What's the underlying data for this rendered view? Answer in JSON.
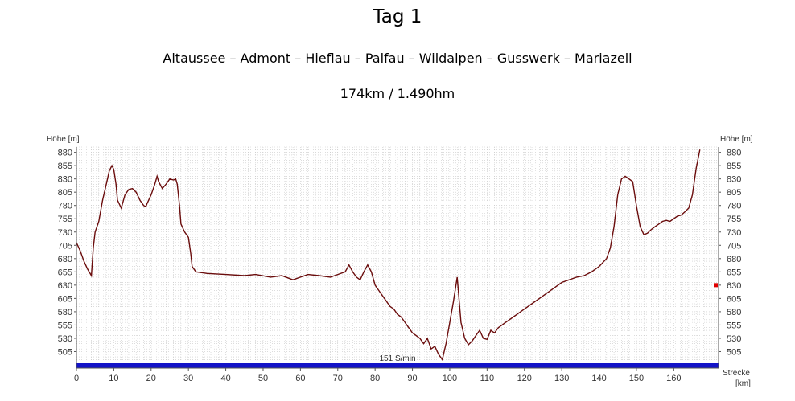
{
  "header": {
    "title": "Tag 1",
    "route": "Altaussee – Admont – Hieflau – Palfau – Wildalpen – Gusswerk  – Mariazell",
    "stats": "174km / 1.490hm"
  },
  "chart_data": {
    "type": "line",
    "ylabel_left": "Höhe [m]",
    "ylabel_right": "Höhe [m]",
    "xlabel_line1": "Strecke",
    "xlabel_line2": "[km]",
    "band_label": "151 S/min",
    "xlim": [
      0,
      172
    ],
    "ylim": [
      480,
      890
    ],
    "x_ticks": [
      0,
      10,
      20,
      30,
      40,
      50,
      60,
      70,
      80,
      90,
      100,
      110,
      120,
      130,
      140,
      150,
      160
    ],
    "y_ticks": [
      505,
      530,
      555,
      580,
      605,
      630,
      655,
      680,
      705,
      730,
      755,
      780,
      805,
      830,
      855,
      880
    ],
    "grid": true,
    "colors": {
      "line": "#6b0d0d",
      "band": "#1414c8",
      "grid": "#c8c8c8",
      "marker": "#e00000"
    },
    "marker_right_y": 630,
    "series": [
      {
        "x": [
          0,
          1,
          2,
          3,
          4,
          4.5,
          5,
          6,
          7,
          8,
          8.8,
          9.5,
          10,
          10.6,
          11,
          12,
          13,
          14,
          15,
          16,
          17,
          18,
          18.6,
          19,
          20,
          21,
          21.6,
          22,
          23,
          24,
          25,
          26,
          26.6,
          27,
          27.6,
          28,
          29,
          30,
          30.6,
          31,
          32,
          35,
          40,
          45,
          48,
          52,
          55,
          58,
          60,
          62,
          65,
          68,
          70,
          72,
          73,
          74,
          75,
          76,
          77,
          78,
          79,
          80,
          81,
          82,
          83,
          84,
          85,
          86,
          87,
          88,
          89,
          90,
          91,
          92,
          93,
          94,
          95,
          96,
          97,
          98,
          99,
          100,
          101,
          102,
          103,
          104,
          105,
          106,
          107,
          108,
          109,
          110,
          111,
          112,
          113,
          114,
          115,
          116,
          117,
          118,
          120,
          122,
          124,
          126,
          128,
          130,
          132,
          134,
          136,
          138,
          140,
          142,
          143,
          144,
          145,
          146,
          147,
          148,
          149,
          150,
          151,
          152,
          153,
          154,
          155,
          156,
          157,
          158,
          159,
          160,
          161,
          162,
          163,
          164,
          165,
          166,
          167
        ],
        "y": [
          710,
          695,
          675,
          660,
          648,
          700,
          730,
          750,
          790,
          820,
          845,
          855,
          848,
          820,
          790,
          775,
          800,
          810,
          812,
          805,
          790,
          780,
          778,
          785,
          800,
          820,
          835,
          825,
          812,
          820,
          830,
          828,
          830,
          820,
          780,
          745,
          730,
          720,
          690,
          665,
          655,
          652,
          650,
          648,
          650,
          645,
          648,
          640,
          645,
          650,
          648,
          645,
          650,
          655,
          668,
          655,
          645,
          640,
          655,
          668,
          655,
          630,
          620,
          610,
          600,
          590,
          585,
          575,
          570,
          560,
          550,
          540,
          535,
          530,
          520,
          530,
          510,
          515,
          500,
          490,
          520,
          560,
          600,
          645,
          560,
          530,
          518,
          525,
          535,
          545,
          530,
          528,
          545,
          540,
          550,
          555,
          560,
          565,
          570,
          575,
          585,
          595,
          605,
          615,
          625,
          635,
          640,
          645,
          648,
          655,
          665,
          680,
          700,
          740,
          800,
          830,
          835,
          830,
          825,
          780,
          740,
          725,
          728,
          735,
          740,
          745,
          750,
          752,
          750,
          755,
          760,
          762,
          768,
          775,
          800,
          850,
          885
        ]
      }
    ]
  }
}
